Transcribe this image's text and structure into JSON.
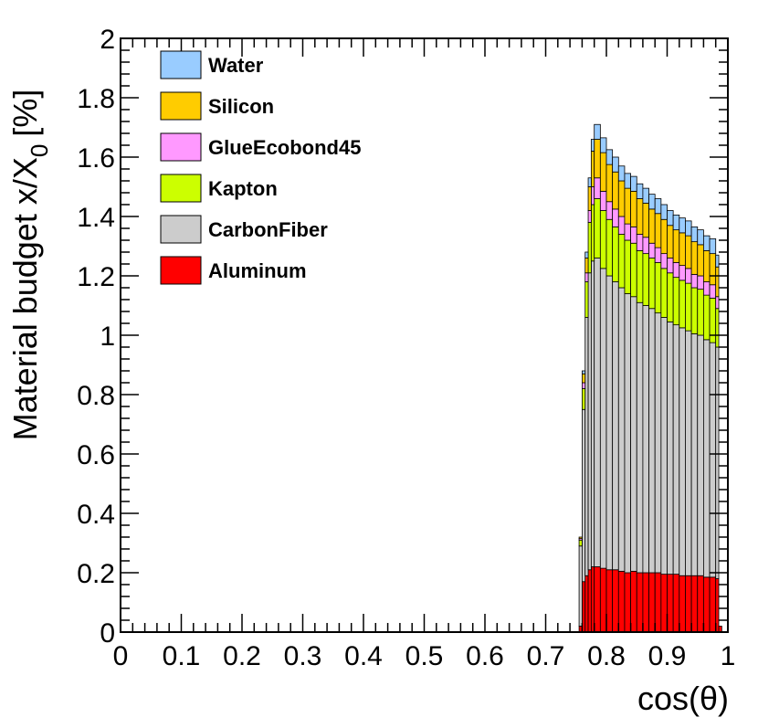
{
  "chart_data": {
    "type": "area",
    "stacked": true,
    "histogram": true,
    "xlabel": "cos(θ)",
    "ylabel": "Material budget x/X",
    "ylabel_sub": "0",
    "ylabel_unit": "[%]",
    "xlim": [
      0,
      1
    ],
    "ylim": [
      0,
      2
    ],
    "x_ticks": [
      0,
      0.1,
      0.2,
      0.3,
      0.4,
      0.5,
      0.6,
      0.7,
      0.8,
      0.9,
      1
    ],
    "x_tick_labels": [
      "0",
      "0.1",
      "0.2",
      "0.3",
      "0.4",
      "0.5",
      "0.6",
      "0.7",
      "0.8",
      "0.9",
      "1"
    ],
    "y_ticks": [
      0,
      0.2,
      0.4,
      0.6,
      0.8,
      1,
      1.2,
      1.4,
      1.6,
      1.8,
      2
    ],
    "y_tick_labels": [
      "0",
      "0.2",
      "0.4",
      "0.6",
      "0.8",
      "1",
      "1.2",
      "1.4",
      "1.6",
      "1.8",
      "2"
    ],
    "grid": false,
    "legend_position": "top-left",
    "bin_width": 0.005,
    "bin_starts": [
      0.755,
      0.76,
      0.765,
      0.77,
      0.775,
      0.78,
      0.79,
      0.8,
      0.81,
      0.82,
      0.83,
      0.84,
      0.85,
      0.86,
      0.87,
      0.88,
      0.89,
      0.9,
      0.91,
      0.92,
      0.93,
      0.94,
      0.95,
      0.96,
      0.97,
      0.98,
      0.985
    ],
    "bin_ends": [
      0.76,
      0.765,
      0.77,
      0.775,
      0.78,
      0.79,
      0.8,
      0.81,
      0.82,
      0.83,
      0.84,
      0.85,
      0.86,
      0.87,
      0.88,
      0.89,
      0.9,
      0.91,
      0.92,
      0.93,
      0.94,
      0.95,
      0.96,
      0.97,
      0.98,
      0.985,
      0.99
    ],
    "series": [
      {
        "name": "Aluminum",
        "color": "#ff0000",
        "values": [
          0.02,
          0.17,
          0.19,
          0.21,
          0.22,
          0.22,
          0.215,
          0.21,
          0.21,
          0.205,
          0.2,
          0.205,
          0.2,
          0.2,
          0.2,
          0.2,
          0.195,
          0.195,
          0.195,
          0.19,
          0.19,
          0.19,
          0.19,
          0.185,
          0.185,
          0.18,
          0.02
        ]
      },
      {
        "name": "CarbonFiber",
        "color": "#cccccc",
        "values": [
          0.27,
          0.58,
          0.87,
          1.0,
          1.03,
          1.04,
          1.01,
          0.99,
          0.97,
          0.955,
          0.94,
          0.925,
          0.91,
          0.9,
          0.89,
          0.875,
          0.865,
          0.85,
          0.84,
          0.835,
          0.825,
          0.815,
          0.81,
          0.8,
          0.79,
          0.78,
          0.0
        ]
      },
      {
        "name": "Kapton",
        "color": "#ccff00",
        "values": [
          0.02,
          0.07,
          0.12,
          0.17,
          0.19,
          0.2,
          0.195,
          0.19,
          0.185,
          0.18,
          0.18,
          0.18,
          0.175,
          0.175,
          0.17,
          0.17,
          0.165,
          0.165,
          0.16,
          0.16,
          0.16,
          0.155,
          0.155,
          0.15,
          0.15,
          0.13,
          0.0
        ]
      },
      {
        "name": "GlueEcobond45",
        "color": "#ff99ff",
        "values": [
          0.005,
          0.02,
          0.03,
          0.04,
          0.06,
          0.07,
          0.065,
          0.06,
          0.06,
          0.06,
          0.055,
          0.055,
          0.055,
          0.055,
          0.05,
          0.05,
          0.05,
          0.05,
          0.05,
          0.05,
          0.05,
          0.045,
          0.045,
          0.045,
          0.045,
          0.04,
          0.0
        ]
      },
      {
        "name": "Silicon",
        "color": "#ffcc00",
        "values": [
          0.005,
          0.03,
          0.05,
          0.08,
          0.12,
          0.13,
          0.13,
          0.125,
          0.125,
          0.12,
          0.12,
          0.12,
          0.12,
          0.115,
          0.115,
          0.115,
          0.115,
          0.11,
          0.11,
          0.11,
          0.11,
          0.11,
          0.105,
          0.105,
          0.105,
          0.1,
          0.0
        ]
      },
      {
        "name": "Water",
        "color": "#99ccff",
        "values": [
          0.0,
          0.01,
          0.02,
          0.03,
          0.04,
          0.05,
          0.05,
          0.05,
          0.05,
          0.05,
          0.05,
          0.05,
          0.05,
          0.05,
          0.05,
          0.05,
          0.05,
          0.05,
          0.05,
          0.05,
          0.05,
          0.05,
          0.05,
          0.05,
          0.05,
          0.04,
          0.0
        ]
      }
    ]
  }
}
